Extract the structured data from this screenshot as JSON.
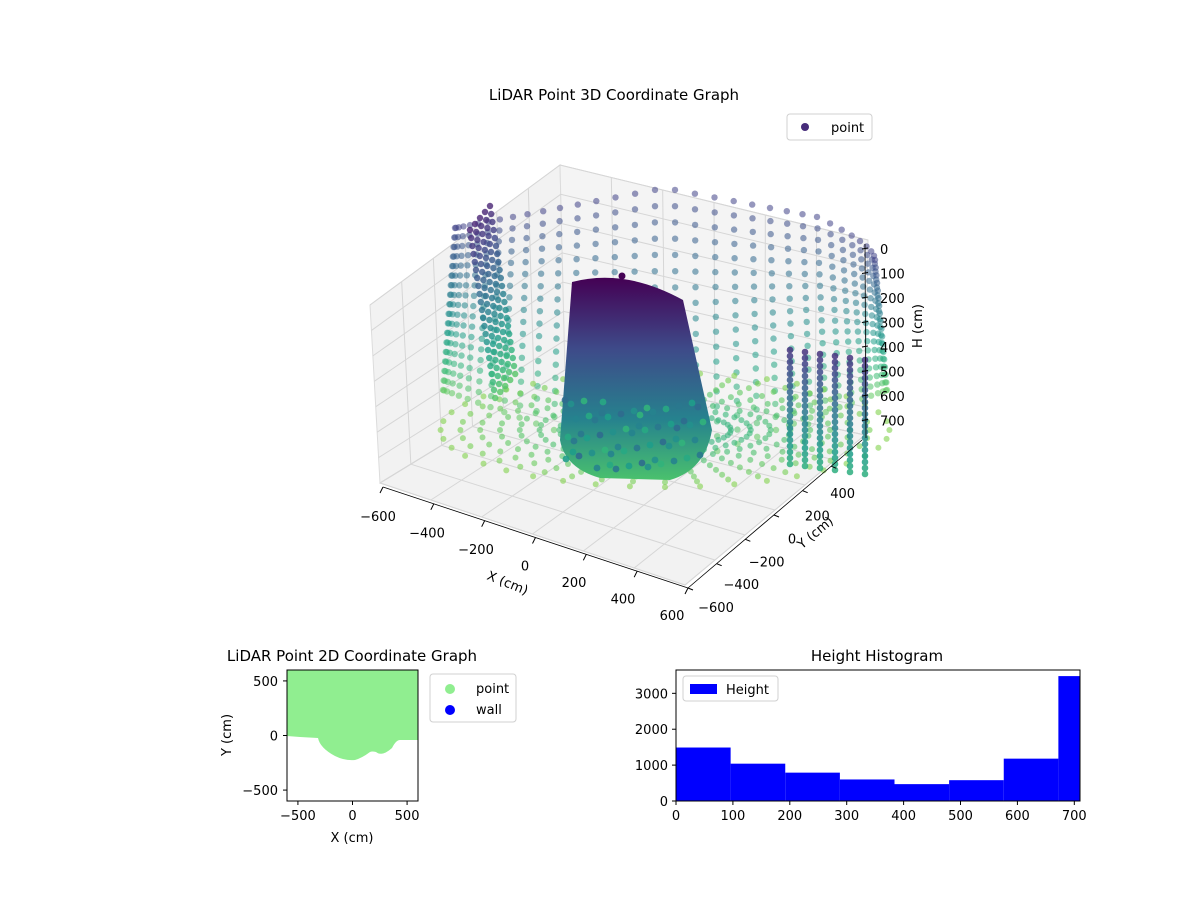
{
  "chart_data": [
    {
      "type": "scatter3d",
      "title": "LiDAR Point 3D Coordinate Graph",
      "xlabel": "X (cm)",
      "ylabel": "Y (cm)",
      "zlabel": "H (cm)",
      "legend": {
        "entries": [
          "point"
        ],
        "placement": "top-right"
      },
      "x_ticks": [
        "−600",
        "−400",
        "−200",
        "0",
        "200",
        "400",
        "600"
      ],
      "y_ticks": [
        "−600",
        "−400",
        "−200",
        "0",
        "200",
        "400"
      ],
      "z_ticks": [
        "0",
        "100",
        "200",
        "300",
        "400",
        "500",
        "600",
        "700"
      ],
      "xlim": [
        -600,
        600
      ],
      "ylim": [
        -600,
        600
      ],
      "zlim": [
        0,
        700
      ],
      "colormap": "viridis",
      "grid": true
    },
    {
      "type": "scatter",
      "title": "LiDAR Point 2D Coordinate Graph",
      "xlabel": "X (cm)",
      "ylabel": "Y (cm)",
      "x_ticks": [
        "−500",
        "0",
        "500"
      ],
      "y_ticks": [
        "500",
        "0",
        "−500"
      ],
      "xlim": [
        -600,
        600
      ],
      "ylim": [
        -600,
        600
      ],
      "series": [
        {
          "name": "point",
          "color": "#90ee90"
        },
        {
          "name": "wall",
          "color": "#0000ff"
        }
      ],
      "legend": {
        "placement": "outside-right"
      }
    },
    {
      "type": "bar",
      "title": "Height Histogram",
      "legend": {
        "entries": [
          "Height"
        ],
        "placement": "top-left"
      },
      "x_ticks": [
        "0",
        "100",
        "200",
        "300",
        "400",
        "500",
        "600",
        "700"
      ],
      "y_ticks": [
        "0",
        "1000",
        "2000",
        "3000"
      ],
      "xlim": [
        0,
        710
      ],
      "ylim": [
        0,
        3650
      ],
      "bin_edges": [
        0,
        96,
        192,
        288,
        384,
        480,
        576,
        672,
        710
      ],
      "values": [
        1490,
        1040,
        790,
        600,
        470,
        580,
        1180,
        3480
      ],
      "color": "#0000ff"
    }
  ]
}
